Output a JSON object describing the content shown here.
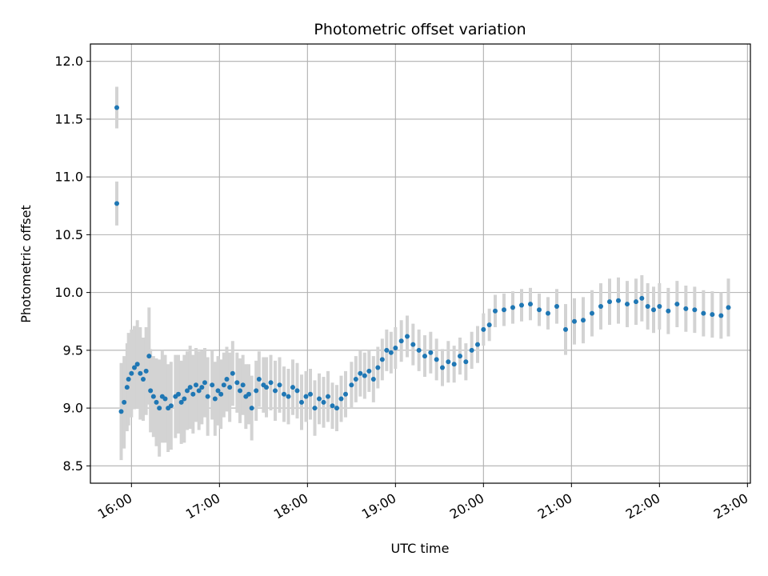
{
  "chart_data": {
    "type": "scatter",
    "title": "Photometric offset variation",
    "xlabel": "UTC time",
    "ylabel": "Photometric offset",
    "x_unit": "UTC time (hours)",
    "xlim": [
      "15:32",
      "23:02"
    ],
    "ylim": [
      8.35,
      12.15
    ],
    "x_ticks": [
      "16:00",
      "17:00",
      "18:00",
      "19:00",
      "20:00",
      "21:00",
      "22:00",
      "23:00"
    ],
    "y_ticks": [
      "8.5",
      "9.0",
      "9.5",
      "10.0",
      "10.5",
      "11.0",
      "11.5",
      "12.0"
    ],
    "grid": true,
    "colors": {
      "points": "#1f77b4",
      "errorbars": "#d3d3d3",
      "grid": "#b0b0b0"
    },
    "series": [
      {
        "x": [
          "15:50",
          "15:50",
          "15:53",
          "15:55",
          "15:57",
          "15:58",
          "16:00",
          "16:02",
          "16:04",
          "16:06",
          "16:08",
          "16:10",
          "16:12",
          "16:13",
          "16:15",
          "16:17",
          "16:19",
          "16:21",
          "16:23",
          "16:25",
          "16:27",
          "16:30",
          "16:32",
          "16:34",
          "16:36",
          "16:38",
          "16:40",
          "16:42",
          "16:44",
          "16:46",
          "16:48",
          "16:50",
          "16:52",
          "16:55",
          "16:57",
          "16:59",
          "17:01",
          "17:03",
          "17:05",
          "17:07",
          "17:09",
          "17:12",
          "17:14",
          "17:16",
          "17:18",
          "17:20",
          "17:22",
          "17:25",
          "17:27",
          "17:30",
          "17:32",
          "17:35",
          "17:38",
          "17:41",
          "17:44",
          "17:47",
          "17:50",
          "17:53",
          "17:56",
          "17:59",
          "18:02",
          "18:05",
          "18:08",
          "18:11",
          "18:14",
          "18:17",
          "18:20",
          "18:23",
          "18:26",
          "18:30",
          "18:33",
          "18:36",
          "18:39",
          "18:42",
          "18:45",
          "18:48",
          "18:51",
          "18:54",
          "18:57",
          "19:00",
          "19:04",
          "19:08",
          "19:12",
          "19:16",
          "19:20",
          "19:24",
          "19:28",
          "19:32",
          "19:36",
          "19:40",
          "19:44",
          "19:48",
          "19:52",
          "19:56",
          "20:00",
          "20:04",
          "20:08",
          "20:14",
          "20:20",
          "20:26",
          "20:32",
          "20:38",
          "20:44",
          "20:50",
          "20:56",
          "21:02",
          "21:08",
          "21:14",
          "21:20",
          "21:26",
          "21:32",
          "21:38",
          "21:44",
          "21:48",
          "21:52",
          "21:56",
          "22:00",
          "22:06",
          "22:12",
          "22:18",
          "22:24",
          "22:30",
          "22:36",
          "22:42",
          "22:47"
        ],
        "y": [
          11.6,
          10.77,
          8.97,
          9.05,
          9.18,
          9.25,
          9.3,
          9.35,
          9.38,
          9.3,
          9.25,
          9.32,
          9.45,
          9.15,
          9.1,
          9.05,
          9.0,
          9.1,
          9.08,
          9.0,
          9.02,
          9.1,
          9.12,
          9.05,
          9.08,
          9.15,
          9.18,
          9.12,
          9.2,
          9.15,
          9.18,
          9.22,
          9.1,
          9.2,
          9.08,
          9.15,
          9.12,
          9.2,
          9.25,
          9.18,
          9.3,
          9.22,
          9.15,
          9.2,
          9.1,
          9.12,
          9.0,
          9.15,
          9.25,
          9.2,
          9.18,
          9.22,
          9.15,
          9.2,
          9.12,
          9.1,
          9.18,
          9.15,
          9.05,
          9.1,
          9.12,
          9.0,
          9.08,
          9.05,
          9.1,
          9.02,
          9.0,
          9.08,
          9.12,
          9.2,
          9.25,
          9.3,
          9.28,
          9.32,
          9.25,
          9.35,
          9.42,
          9.5,
          9.48,
          9.52,
          9.58,
          9.62,
          9.55,
          9.5,
          9.45,
          9.48,
          9.42,
          9.35,
          9.4,
          9.38,
          9.45,
          9.4,
          9.5,
          9.55,
          9.68,
          9.72,
          9.84,
          9.85,
          9.87,
          9.89,
          9.9,
          9.85,
          9.82,
          9.88,
          9.68,
          9.75,
          9.76,
          9.82,
          9.88,
          9.92,
          9.93,
          9.9,
          9.92,
          9.95,
          9.88,
          9.85,
          9.88,
          9.84,
          9.9,
          9.86,
          9.85,
          9.82,
          9.81,
          9.8,
          9.87
        ],
        "yerr": [
          0.18,
          0.19,
          0.42,
          0.4,
          0.38,
          0.4,
          0.38,
          0.36,
          0.38,
          0.4,
          0.36,
          0.38,
          0.42,
          0.36,
          0.35,
          0.38,
          0.42,
          0.4,
          0.38,
          0.38,
          0.38,
          0.36,
          0.34,
          0.36,
          0.38,
          0.34,
          0.36,
          0.34,
          0.32,
          0.34,
          0.32,
          0.3,
          0.34,
          0.3,
          0.32,
          0.3,
          0.3,
          0.28,
          0.28,
          0.3,
          0.28,
          0.26,
          0.28,
          0.26,
          0.28,
          0.26,
          0.28,
          0.26,
          0.24,
          0.24,
          0.26,
          0.24,
          0.26,
          0.24,
          0.24,
          0.24,
          0.24,
          0.24,
          0.24,
          0.22,
          0.22,
          0.24,
          0.22,
          0.22,
          0.22,
          0.2,
          0.2,
          0.2,
          0.2,
          0.2,
          0.2,
          0.2,
          0.2,
          0.18,
          0.2,
          0.18,
          0.18,
          0.18,
          0.18,
          0.18,
          0.18,
          0.18,
          0.18,
          0.18,
          0.18,
          0.18,
          0.18,
          0.16,
          0.18,
          0.16,
          0.16,
          0.16,
          0.16,
          0.16,
          0.14,
          0.14,
          0.14,
          0.14,
          0.14,
          0.14,
          0.14,
          0.14,
          0.14,
          0.15,
          0.22,
          0.2,
          0.2,
          0.2,
          0.2,
          0.2,
          0.2,
          0.2,
          0.2,
          0.2,
          0.2,
          0.2,
          0.2,
          0.2,
          0.2,
          0.2,
          0.2,
          0.2,
          0.2,
          0.2,
          0.25
        ]
      }
    ]
  }
}
